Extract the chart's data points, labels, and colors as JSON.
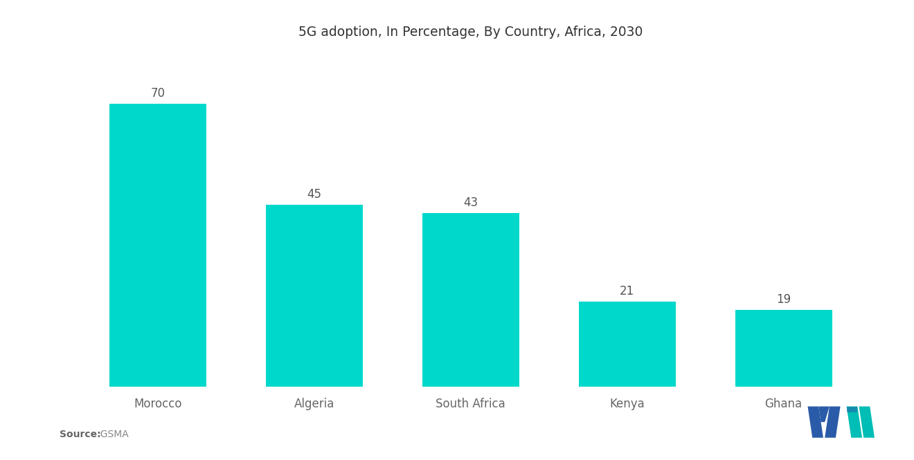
{
  "title": "5G adoption, In Percentage, By Country, Africa, 2030",
  "categories": [
    "Morocco",
    "Algeria",
    "South Africa",
    "Kenya",
    "Ghana"
  ],
  "values": [
    70,
    45,
    43,
    21,
    19
  ],
  "bar_color": "#00D8CC",
  "background_color": "#ffffff",
  "label_color": "#666666",
  "value_color": "#555555",
  "title_fontsize": 13.5,
  "label_fontsize": 12,
  "value_fontsize": 12,
  "source_bold": "Source:",
  "source_normal": "  GSMA",
  "ylim": [
    0,
    82
  ],
  "bar_width": 0.62,
  "logo_blue": "#2A5BA8",
  "logo_teal": "#00BDB5"
}
